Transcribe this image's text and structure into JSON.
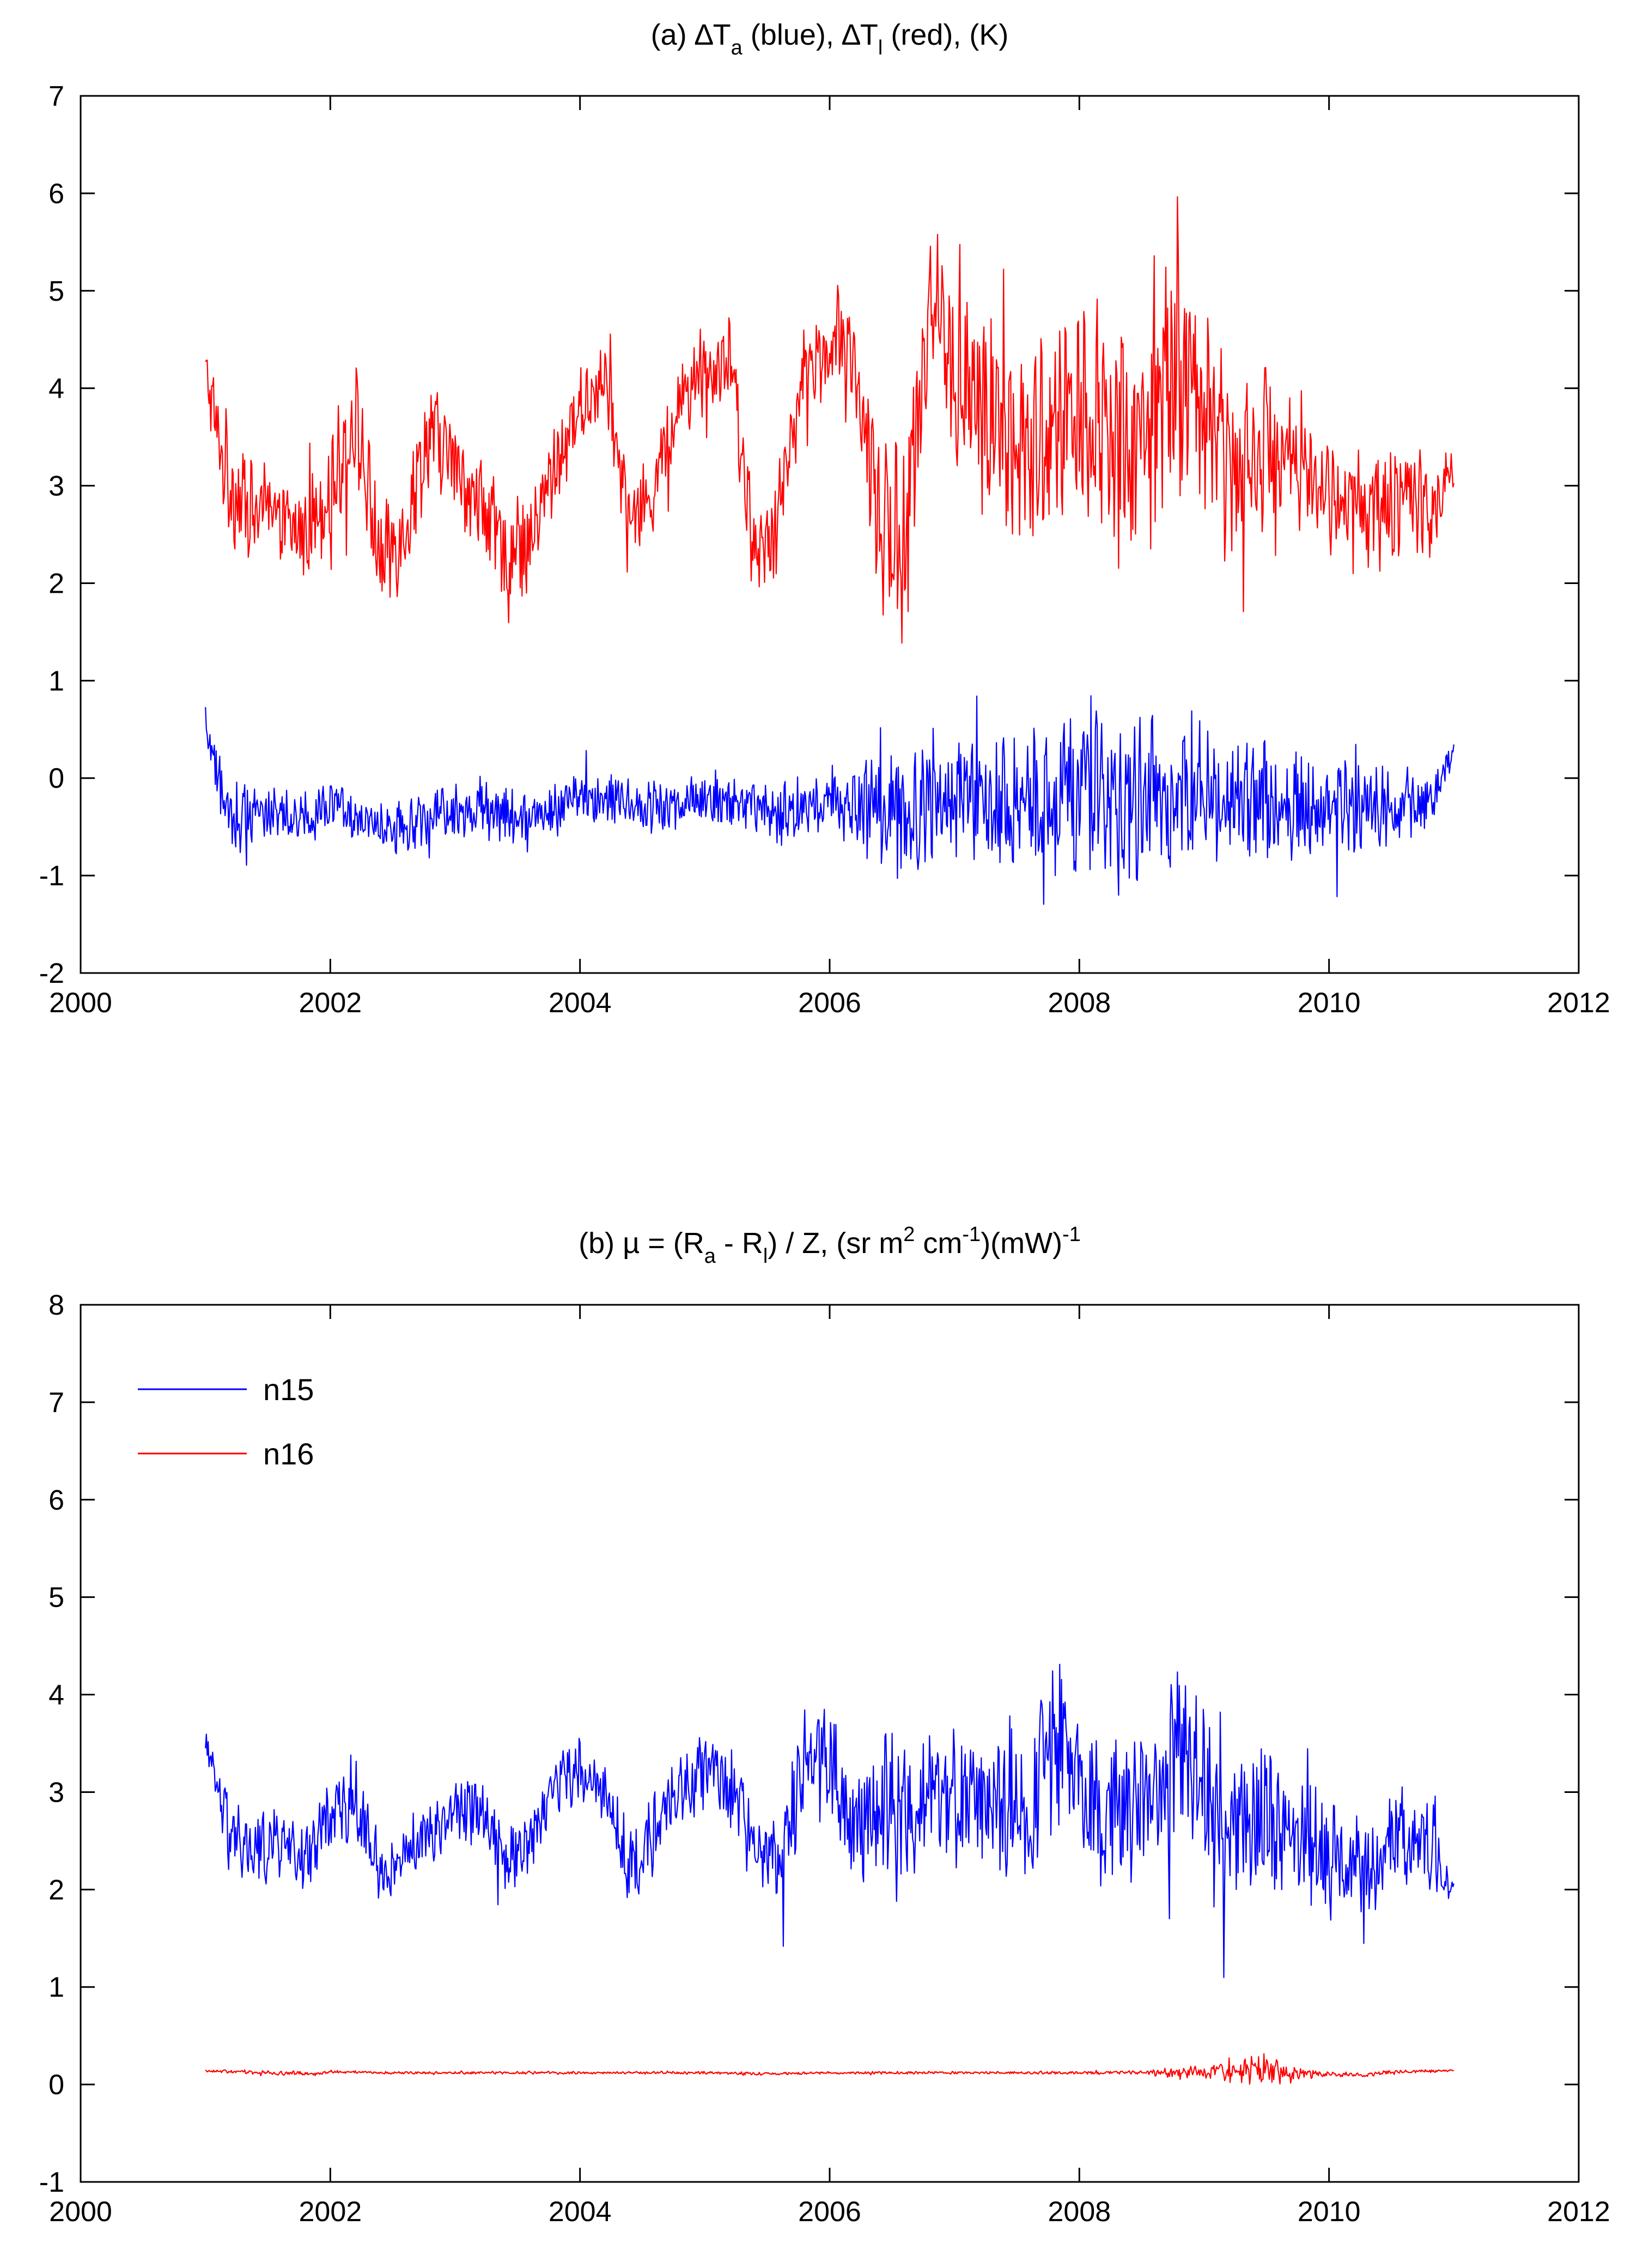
{
  "chart_data": [
    {
      "type": "line",
      "title": {
        "parts": [
          {
            "t": "(a) ∆T"
          },
          {
            "t": "a",
            "shift": "sub"
          },
          {
            "t": " (blue), ∆T"
          },
          {
            "t": "l",
            "shift": "sub"
          },
          {
            "t": " (red), (K)"
          }
        ]
      },
      "xlabel": "",
      "ylabel": "",
      "xlim": [
        2000,
        2012
      ],
      "ylim": [
        -2,
        7
      ],
      "xticks": [
        2000,
        2002,
        2004,
        2006,
        2008,
        2010,
        2012
      ],
      "yticks": [
        -2,
        -1,
        0,
        1,
        2,
        3,
        4,
        5,
        6,
        7
      ],
      "grid": false,
      "legend": null,
      "series": [
        {
          "name": "∆T_l (red)",
          "color": "#ff0000",
          "style": "noisy",
          "x": [
            2001.0,
            2001.1,
            2001.2,
            2001.4,
            2001.6,
            2001.8,
            2002.0,
            2002.2,
            2002.4,
            2002.6,
            2002.8,
            2003.0,
            2003.2,
            2003.4,
            2003.6,
            2003.8,
            2004.0,
            2004.2,
            2004.4,
            2004.6,
            2004.8,
            2005.0,
            2005.2,
            2005.4,
            2005.6,
            2005.8,
            2006.0,
            2006.2,
            2006.4,
            2006.6,
            2006.8,
            2007.0,
            2007.2,
            2007.4,
            2007.6,
            2007.8,
            2008.0,
            2008.2,
            2008.4,
            2008.6,
            2008.8,
            2009.0,
            2009.2,
            2009.4,
            2009.6,
            2009.8,
            2010.0,
            2010.2,
            2010.4,
            2010.6,
            2010.8,
            2011.0
          ],
          "y": [
            4.2,
            3.5,
            3.0,
            2.7,
            2.6,
            2.5,
            3.0,
            3.7,
            2.2,
            2.6,
            3.6,
            3.2,
            2.8,
            2.3,
            2.4,
            3.2,
            3.8,
            4.1,
            2.6,
            3.0,
            3.9,
            4.2,
            4.3,
            2.2,
            2.8,
            4.2,
            4.4,
            4.2,
            2.6,
            2.2,
            5.0,
            4.1,
            3.8,
            3.6,
            3.2,
            3.6,
            3.9,
            3.6,
            3.4,
            3.7,
            4.3,
            3.8,
            3.2,
            3.4,
            3.4,
            3.2,
            2.9,
            2.8,
            2.7,
            2.9,
            2.8,
            3.1
          ],
          "amp": [
            0.3,
            0.9,
            0.9,
            0.8,
            0.7,
            0.8,
            0.9,
            0.9,
            0.9,
            0.9,
            0.8,
            0.8,
            0.8,
            0.8,
            0.8,
            0.8,
            0.6,
            0.6,
            0.6,
            0.7,
            0.7,
            0.7,
            0.7,
            0.7,
            0.7,
            0.7,
            0.7,
            0.8,
            1.3,
            1.4,
            1.3,
            1.4,
            1.5,
            1.5,
            1.6,
            1.7,
            1.8,
            1.9,
            2.0,
            1.9,
            1.8,
            1.7,
            1.5,
            1.3,
            1.1,
            1.0,
            0.9,
            0.9,
            0.9,
            0.9,
            0.9,
            0.4
          ]
        },
        {
          "name": "∆T_a (blue)",
          "color": "#0000ff",
          "style": "noisy",
          "x": [
            2001.0,
            2001.2,
            2001.4,
            2001.6,
            2001.8,
            2002.0,
            2002.2,
            2002.4,
            2002.6,
            2002.8,
            2003.0,
            2003.2,
            2003.4,
            2003.6,
            2003.8,
            2004.0,
            2004.2,
            2004.4,
            2004.6,
            2004.8,
            2005.0,
            2005.2,
            2005.4,
            2005.6,
            2005.8,
            2006.0,
            2006.2,
            2006.4,
            2006.6,
            2006.8,
            2007.0,
            2007.2,
            2007.4,
            2007.6,
            2007.8,
            2008.0,
            2008.2,
            2008.4,
            2008.6,
            2008.8,
            2009.0,
            2009.2,
            2009.4,
            2009.6,
            2009.8,
            2010.0,
            2010.2,
            2010.4,
            2010.6,
            2010.8,
            2011.0
          ],
          "y": [
            0.5,
            -0.4,
            -0.3,
            -0.4,
            -0.4,
            -0.3,
            -0.4,
            -0.5,
            -0.5,
            -0.4,
            -0.3,
            -0.3,
            -0.4,
            -0.4,
            -0.3,
            -0.2,
            -0.2,
            -0.3,
            -0.3,
            -0.3,
            -0.2,
            -0.3,
            -0.3,
            -0.4,
            -0.3,
            -0.3,
            -0.3,
            -0.3,
            -0.4,
            -0.3,
            -0.2,
            -0.3,
            -0.3,
            -0.2,
            -0.2,
            -0.2,
            -0.2,
            -0.3,
            -0.2,
            -0.2,
            -0.2,
            -0.2,
            -0.2,
            -0.3,
            -0.3,
            -0.3,
            -0.3,
            -0.3,
            -0.3,
            -0.3,
            0.3
          ],
          "amp": [
            0.2,
            0.7,
            0.5,
            0.4,
            0.4,
            0.4,
            0.4,
            0.4,
            0.4,
            0.4,
            0.4,
            0.5,
            0.5,
            0.4,
            0.4,
            0.4,
            0.4,
            0.4,
            0.4,
            0.4,
            0.4,
            0.4,
            0.4,
            0.5,
            0.5,
            0.5,
            0.6,
            0.8,
            1.0,
            0.9,
            0.9,
            1.0,
            1.1,
            1.1,
            1.2,
            1.3,
            1.3,
            1.3,
            1.2,
            1.2,
            1.1,
            1.0,
            1.0,
            0.9,
            0.8,
            0.7,
            0.7,
            0.6,
            0.6,
            0.5,
            0.2
          ]
        }
      ]
    },
    {
      "type": "line",
      "title": {
        "parts": [
          {
            "t": "(b) µ = (R"
          },
          {
            "t": "a",
            "shift": "sub"
          },
          {
            "t": " - R"
          },
          {
            "t": "l",
            "shift": "sub"
          },
          {
            "t": ") / Z, (sr m"
          },
          {
            "t": "2",
            "shift": "sup"
          },
          {
            "t": " cm"
          },
          {
            "t": "-1",
            "shift": "sup"
          },
          {
            "t": ")(mW)"
          },
          {
            "t": "-1",
            "shift": "sup"
          }
        ]
      },
      "xlabel": "",
      "ylabel": "",
      "xlim": [
        2000,
        2012
      ],
      "ylim": [
        -1,
        8
      ],
      "xticks": [
        2000,
        2002,
        2004,
        2006,
        2008,
        2010,
        2012
      ],
      "yticks": [
        -1,
        0,
        1,
        2,
        3,
        4,
        5,
        6,
        7,
        8
      ],
      "grid": false,
      "legend": {
        "position": "top-left",
        "entries": [
          {
            "label": "n15",
            "color": "#0000ff"
          },
          {
            "label": "n16",
            "color": "#ff0000"
          }
        ]
      },
      "series": [
        {
          "name": "n15",
          "color": "#0000ff",
          "style": "noisy",
          "x": [
            2001.0,
            2001.2,
            2001.4,
            2001.6,
            2001.8,
            2002.0,
            2002.2,
            2002.4,
            2002.6,
            2002.8,
            2003.0,
            2003.2,
            2003.4,
            2003.6,
            2003.8,
            2004.0,
            2004.2,
            2004.4,
            2004.6,
            2004.8,
            2005.0,
            2005.2,
            2005.4,
            2005.6,
            2005.8,
            2006.0,
            2006.2,
            2006.4,
            2006.6,
            2006.8,
            2007.0,
            2007.2,
            2007.4,
            2007.6,
            2007.8,
            2008.0,
            2008.2,
            2008.4,
            2008.6,
            2008.8,
            2009.0,
            2009.2,
            2009.4,
            2009.6,
            2009.8,
            2010.0,
            2010.2,
            2010.4,
            2010.6,
            2010.8,
            2011.0
          ],
          "y": [
            3.5,
            2.5,
            2.4,
            2.5,
            2.3,
            2.8,
            2.9,
            2.1,
            2.4,
            2.6,
            2.8,
            2.9,
            2.3,
            2.5,
            3.1,
            3.2,
            3.0,
            2.2,
            2.6,
            3.0,
            3.2,
            3.1,
            2.4,
            2.2,
            3.4,
            3.3,
            2.6,
            2.9,
            2.8,
            3.0,
            2.9,
            3.0,
            2.8,
            2.7,
            3.7,
            2.9,
            2.8,
            2.8,
            3.0,
            3.5,
            3.0,
            2.6,
            2.8,
            2.6,
            2.5,
            2.3,
            2.2,
            2.3,
            2.6,
            2.4,
            2.0
          ],
          "amp": [
            0.2,
            0.6,
            0.6,
            0.6,
            0.5,
            0.6,
            0.6,
            0.5,
            0.5,
            0.5,
            0.5,
            0.5,
            0.5,
            0.5,
            0.5,
            0.5,
            0.5,
            0.6,
            0.6,
            0.6,
            0.6,
            0.6,
            0.6,
            0.7,
            0.9,
            0.9,
            0.9,
            1.0,
            1.2,
            1.2,
            1.1,
            1.1,
            1.1,
            1.1,
            1.3,
            1.2,
            1.2,
            1.2,
            1.2,
            1.4,
            1.2,
            1.2,
            1.1,
            1.1,
            1.0,
            0.9,
            0.8,
            0.8,
            0.8,
            0.7,
            0.2
          ]
        },
        {
          "name": "n16",
          "color": "#ff0000",
          "style": "noisy",
          "x": [
            2001.0,
            2001.5,
            2001.9,
            2002.0,
            2002.5,
            2003.0,
            2003.5,
            2004.0,
            2004.5,
            2005.0,
            2005.5,
            2006.0,
            2006.5,
            2007.0,
            2007.5,
            2008.0,
            2008.5,
            2008.8,
            2009.0,
            2009.3,
            2009.5,
            2009.7,
            2010.0,
            2010.3,
            2010.5,
            2011.0
          ],
          "y": [
            0.14,
            0.12,
            0.11,
            0.13,
            0.12,
            0.12,
            0.12,
            0.12,
            0.12,
            0.12,
            0.11,
            0.12,
            0.12,
            0.12,
            0.12,
            0.12,
            0.12,
            0.12,
            0.13,
            0.14,
            0.14,
            0.12,
            0.1,
            0.1,
            0.13,
            0.14
          ],
          "amp": [
            0.02,
            0.03,
            0.03,
            0.02,
            0.02,
            0.02,
            0.02,
            0.02,
            0.02,
            0.02,
            0.02,
            0.02,
            0.02,
            0.02,
            0.02,
            0.02,
            0.03,
            0.1,
            0.1,
            0.2,
            0.28,
            0.1,
            0.04,
            0.04,
            0.03,
            0.02
          ]
        }
      ]
    }
  ]
}
